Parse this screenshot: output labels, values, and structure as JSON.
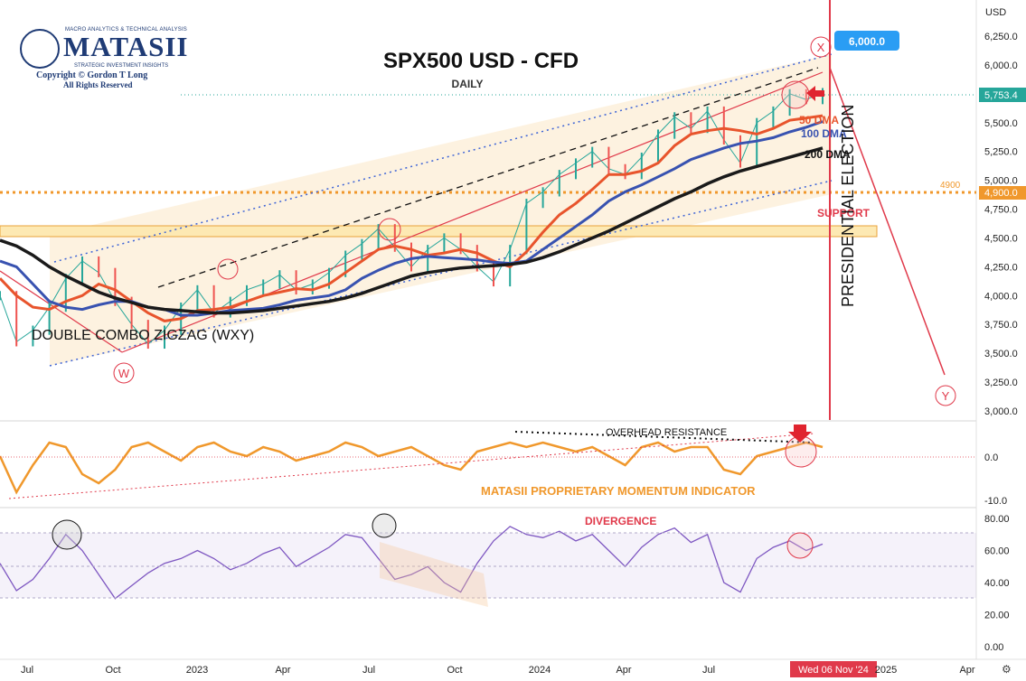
{
  "header": {
    "title": "SPX500 USD - CFD",
    "subtitle": "DAILY",
    "currency": "USD"
  },
  "logo": {
    "tagline": "MACRO ANALYTICS & TECHNICAL ANALYSIS",
    "name": "MATASII",
    "sub": "STRATEGIC INVESTMENT INSIGHTS",
    "copyright": "Copyright © Gordon T Long",
    "rights": "All Rights Reserved"
  },
  "chart_data": {
    "type": "line",
    "x_ticks": [
      "Jul",
      "Oct",
      "2023",
      "Apr",
      "Jul",
      "Oct",
      "2024",
      "Apr",
      "Jul",
      "Wed 06 Nov '24",
      "2025",
      "Apr"
    ],
    "price_panel": {
      "y_ticks": [
        "6,250.0",
        "6,000.0",
        "5,750.0",
        "5,500.0",
        "5,250.0",
        "5,000.0",
        "4,750.0",
        "4,500.0",
        "4,250.0",
        "4,000.0",
        "3,750.0",
        "3,500.0",
        "3,250.0",
        "3,000.0"
      ],
      "ylim": [
        3000,
        6250
      ],
      "current_price": "5,753.4",
      "target_price": "6,000.0",
      "support_level": "4,900.0",
      "support_level_label": "4900",
      "series": [
        {
          "name": "SPX500",
          "color": "#26a69a",
          "values": [
            4000,
            3600,
            3700,
            3900,
            4150,
            4300,
            4200,
            3950,
            3750,
            3580,
            3700,
            3900,
            4050,
            3850,
            3950,
            4050,
            4100,
            4180,
            4050,
            4100,
            4200,
            4350,
            4450,
            4580,
            4420,
            4250,
            4400,
            4500,
            4400,
            4250,
            4120,
            4400,
            4800,
            4900,
            5050,
            5150,
            5250,
            5100,
            5050,
            5200,
            5400,
            5550,
            5450,
            5600,
            5350,
            5150,
            5500,
            5600,
            5750,
            5700,
            5760
          ]
        },
        {
          "name": "50 DMA",
          "color": "#e8542c",
          "values": [
            4150,
            4000,
            3900,
            3880,
            3950,
            4000,
            4100,
            4050,
            3950,
            3850,
            3780,
            3800,
            3870,
            3880,
            3900,
            3950,
            4000,
            4030,
            4060,
            4050,
            4100,
            4200,
            4300,
            4400,
            4430,
            4400,
            4350,
            4370,
            4400,
            4370,
            4300,
            4250,
            4380,
            4550,
            4700,
            4800,
            4920,
            5050,
            5050,
            5080,
            5150,
            5300,
            5400,
            5430,
            5450,
            5430,
            5400,
            5450,
            5520,
            5540,
            5560
          ]
        },
        {
          "name": "100 DMA",
          "color": "#3852b0",
          "values": [
            4300,
            4250,
            4100,
            3950,
            3900,
            3880,
            3920,
            3950,
            3950,
            3900,
            3880,
            3830,
            3830,
            3850,
            3870,
            3880,
            3890,
            3920,
            3960,
            3980,
            4000,
            4050,
            4150,
            4220,
            4280,
            4320,
            4340,
            4330,
            4320,
            4310,
            4290,
            4280,
            4300,
            4400,
            4500,
            4600,
            4700,
            4820,
            4900,
            4960,
            5030,
            5100,
            5180,
            5230,
            5280,
            5320,
            5340,
            5370,
            5420,
            5460,
            5510
          ]
        },
        {
          "name": "200 DMA",
          "color": "#1a1a1a",
          "values": [
            4480,
            4430,
            4350,
            4250,
            4170,
            4100,
            4030,
            3980,
            3940,
            3900,
            3880,
            3870,
            3860,
            3850,
            3850,
            3860,
            3870,
            3890,
            3910,
            3930,
            3950,
            3980,
            4020,
            4070,
            4120,
            4170,
            4200,
            4220,
            4240,
            4250,
            4260,
            4270,
            4290,
            4330,
            4380,
            4440,
            4500,
            4560,
            4630,
            4700,
            4770,
            4840,
            4900,
            4970,
            5030,
            5080,
            5120,
            5160,
            5200,
            5240,
            5280
          ]
        }
      ],
      "annotations": {
        "dma_50": "50 DMA",
        "dma_100": "100 DMA",
        "dma_200": "200 DMA",
        "pattern": "DOUBLE COMBO ZIGZAG (WXY)",
        "election": "PRESIDENTIAL ELECTION",
        "support": "SUPPORT",
        "wave_w": "W",
        "wave_x": "X",
        "wave_y": "Y"
      }
    },
    "momentum_panel": {
      "y_ticks": [
        "0.0",
        "-10.0"
      ],
      "label": "MATASII PROPRIETARY MOMENTUM INDICATOR",
      "resistance": "OVERHEAD RESISTANCE",
      "values": [
        0,
        -8,
        -2,
        3,
        2,
        -4,
        -6,
        -3,
        2,
        3,
        1,
        -1,
        2,
        3,
        1,
        0,
        2,
        1,
        -1,
        0,
        1,
        3,
        2,
        0,
        1,
        2,
        0,
        -2,
        -3,
        1,
        2,
        3,
        2,
        3,
        2,
        1,
        2,
        0,
        -2,
        2,
        3,
        1,
        2,
        2,
        -3,
        -4,
        0,
        1,
        2,
        3,
        2
      ]
    },
    "rsi_panel": {
      "y_ticks": [
        "80.00",
        "60.00",
        "40.00",
        "20.00",
        "0.00"
      ],
      "ylim": [
        0,
        80
      ],
      "divergence": "DIVERGENCE",
      "values": [
        52,
        35,
        42,
        55,
        70,
        60,
        45,
        30,
        38,
        46,
        52,
        55,
        60,
        55,
        48,
        52,
        58,
        62,
        50,
        56,
        62,
        70,
        68,
        55,
        42,
        45,
        50,
        40,
        34,
        52,
        66,
        75,
        70,
        68,
        72,
        66,
        70,
        60,
        50,
        62,
        70,
        74,
        65,
        70,
        40,
        34,
        55,
        62,
        66,
        60,
        64
      ]
    }
  }
}
